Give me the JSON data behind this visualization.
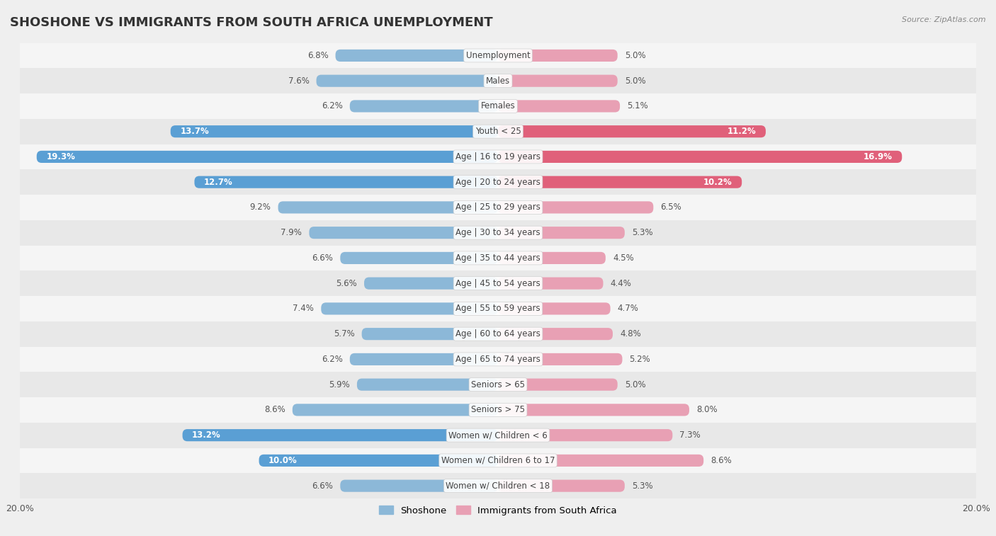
{
  "title": "SHOSHONE VS IMMIGRANTS FROM SOUTH AFRICA UNEMPLOYMENT",
  "source": "Source: ZipAtlas.com",
  "categories": [
    "Unemployment",
    "Males",
    "Females",
    "Youth < 25",
    "Age | 16 to 19 years",
    "Age | 20 to 24 years",
    "Age | 25 to 29 years",
    "Age | 30 to 34 years",
    "Age | 35 to 44 years",
    "Age | 45 to 54 years",
    "Age | 55 to 59 years",
    "Age | 60 to 64 years",
    "Age | 65 to 74 years",
    "Seniors > 65",
    "Seniors > 75",
    "Women w/ Children < 6",
    "Women w/ Children 6 to 17",
    "Women w/ Children < 18"
  ],
  "shoshone": [
    6.8,
    7.6,
    6.2,
    13.7,
    19.3,
    12.7,
    9.2,
    7.9,
    6.6,
    5.6,
    7.4,
    5.7,
    6.2,
    5.9,
    8.6,
    13.2,
    10.0,
    6.6
  ],
  "immigrants": [
    5.0,
    5.0,
    5.1,
    11.2,
    16.9,
    10.2,
    6.5,
    5.3,
    4.5,
    4.4,
    4.7,
    4.8,
    5.2,
    5.0,
    8.0,
    7.3,
    8.6,
    5.3
  ],
  "shoshone_color": "#8cb8d8",
  "immigrants_color": "#e8a0b4",
  "shoshone_highlight_color": "#5a9fd4",
  "immigrants_highlight_color": "#e0607a",
  "highlight_threshold_shoshone": 10.0,
  "highlight_threshold_immigrants": 10.0,
  "axis_limit": 20.0,
  "bar_height": 0.48,
  "background_color": "#efefef",
  "row_color_light": "#f5f5f5",
  "row_color_dark": "#e8e8e8",
  "label_color_dark": "#555555",
  "label_color_white": "#ffffff",
  "title_fontsize": 13,
  "label_fontsize": 8.5,
  "cat_fontsize": 8.5,
  "tick_fontsize": 9,
  "legend_fontsize": 9.5
}
